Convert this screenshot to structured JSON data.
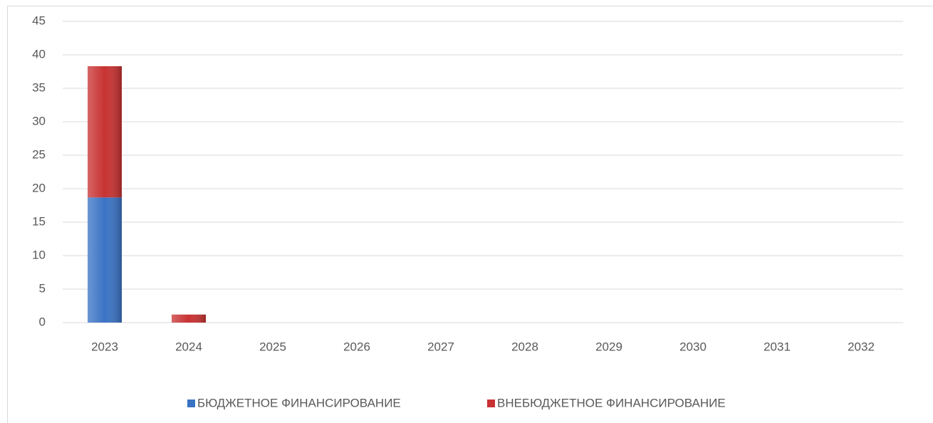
{
  "chart_data": {
    "type": "stacked_bar",
    "categories": [
      "2023",
      "2024",
      "2025",
      "2026",
      "2027",
      "2028",
      "2029",
      "2030",
      "2031",
      "2032"
    ],
    "series": [
      {
        "name": "БЮДЖЕТНОЕ ФИНАНСИРОВАНИЕ",
        "color": "#3b73c4",
        "values": [
          18.7,
          0,
          0,
          0,
          0,
          0,
          0,
          0,
          0,
          0
        ]
      },
      {
        "name": "ВНЕБЮДЖЕТНОЕ ФИНАНСИРОВАНИЕ",
        "color": "#c83232",
        "values": [
          19.6,
          1.2,
          0,
          0,
          0,
          0,
          0,
          0,
          0,
          0
        ]
      }
    ],
    "ylim": [
      0,
      45
    ],
    "yticks": [
      0,
      5,
      10,
      15,
      20,
      25,
      30,
      35,
      40,
      45
    ],
    "grid": true,
    "legend": "bottom"
  }
}
